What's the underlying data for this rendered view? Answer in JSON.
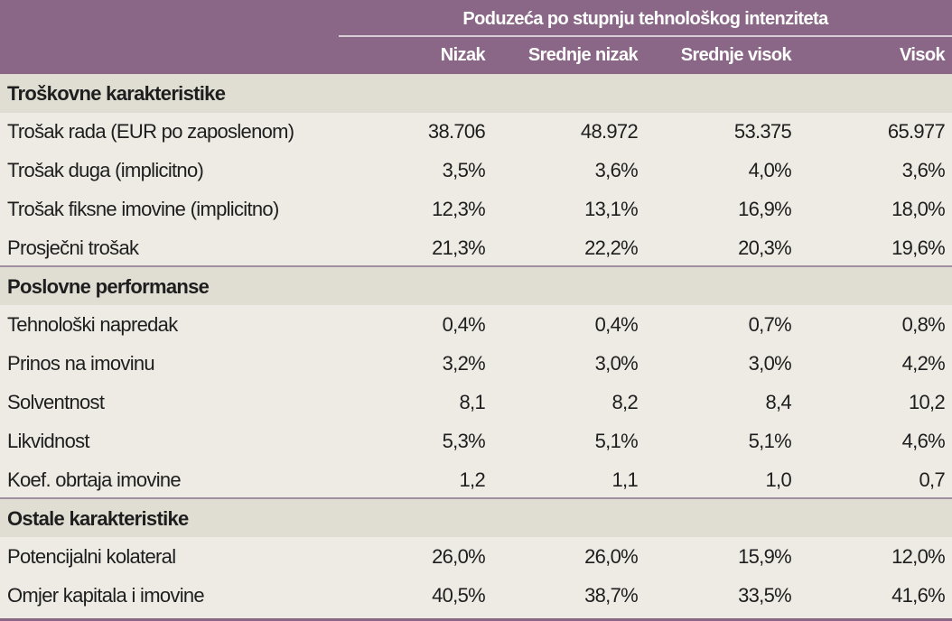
{
  "header": {
    "group_title": "Poduzeća po stupnju tehnološkog intenziteta",
    "columns": [
      "Nizak",
      "Srednje nizak",
      "Srednje visok",
      "Visok"
    ]
  },
  "sections": [
    {
      "title": "Troškovne karakteristike",
      "rows": [
        {
          "label": "Trošak rada (EUR po zaposlenom)",
          "values": [
            "38.706",
            "48.972",
            "53.375",
            "65.977"
          ]
        },
        {
          "label": "Trošak duga (implicitno)",
          "values": [
            "3,5%",
            "3,6%",
            "4,0%",
            "3,6%"
          ]
        },
        {
          "label": "Trošak fiksne imovine (implicitno)",
          "values": [
            "12,3%",
            "13,1%",
            "16,9%",
            "18,0%"
          ]
        },
        {
          "label": "Prosječni trošak",
          "values": [
            "21,3%",
            "22,2%",
            "20,3%",
            "19,6%"
          ]
        }
      ]
    },
    {
      "title": "Poslovne performanse",
      "rows": [
        {
          "label": "Tehnološki napredak",
          "values": [
            "0,4%",
            "0,4%",
            "0,7%",
            "0,8%"
          ]
        },
        {
          "label": "Prinos na imovinu",
          "values": [
            "3,2%",
            "3,0%",
            "3,0%",
            "4,2%"
          ]
        },
        {
          "label": "Solventnost",
          "values": [
            "8,1",
            "8,2",
            "8,4",
            "10,2"
          ]
        },
        {
          "label": "Likvidnost",
          "values": [
            "5,3%",
            "5,1%",
            "5,1%",
            "4,6%"
          ]
        },
        {
          "label": "Koef. obrtaja imovine",
          "values": [
            "1,2",
            "1,1",
            "1,0",
            "0,7"
          ]
        }
      ]
    },
    {
      "title": "Ostale karakteristike",
      "rows": [
        {
          "label": "Potencijalni kolateral",
          "values": [
            "26,0%",
            "26,0%",
            "15,9%",
            "12,0%"
          ]
        },
        {
          "label": "Omjer kapitala i imovine",
          "values": [
            "40,5%",
            "38,7%",
            "33,5%",
            "41,6%"
          ]
        }
      ]
    }
  ]
}
